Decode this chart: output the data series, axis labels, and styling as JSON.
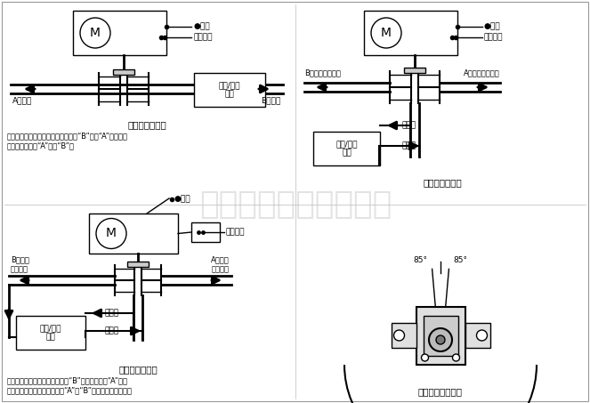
{
  "bg_color": "#ffffff",
  "line_color": "#000000",
  "fig1_label": "（图一）二通阀",
  "fig2_label": "（图二）三通阀",
  "fig3_label": "（图三）三通阀",
  "fig4_label": "（图四）安装角度",
  "fig1_caption1": "当安装常闭二通阀时，水流方向是由“B”端至“A”端，对常",
  "fig1_caption2": "开阀门流动是由“A”端至“B”端",
  "fig3_caption1": "三通阀：当安装分流三通阀时，“B”端为供应端，“A”端为",
  "fig3_caption2": "旁通端，入口是没有标记的，“A”和“B”孔标记于阀体底部。",
  "watermark_text": "上海昭泰阀门有限公司",
  "label_dianyuan": "电源",
  "label_wenkong": "温控开关",
  "label_lengre": "冷却/加热\n盘管",
  "label_A_chushui": "A端出水",
  "label_B_jinshui": "B端进水",
  "label_B_supply_nc": "B端供应（常闭）",
  "label_A_bypass_no": "A端旁通（常开）",
  "label_B_supply2": "B端供应\n（常闭）",
  "label_A_bypass2": "A端旁通\n（常开）",
  "label_gongshui": "供水管",
  "label_huishui": "回水管",
  "angle_85_left": "85°",
  "angle_85_right": "85°"
}
